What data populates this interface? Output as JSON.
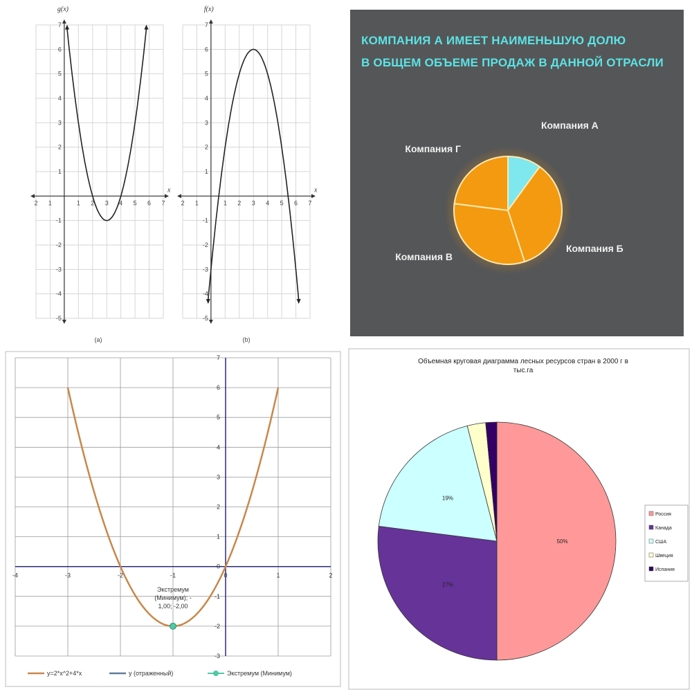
{
  "chart_data": [
    {
      "type": "line",
      "panel_label": "(a)",
      "ylabel": "g(x)",
      "xlabel": "x",
      "xlim": [
        -2,
        7
      ],
      "ylim": [
        -5,
        7
      ],
      "x_ticks": [
        -2,
        -1,
        1,
        2,
        3,
        4,
        5,
        6,
        7
      ],
      "y_ticks": [
        7,
        6,
        5,
        4,
        3,
        2,
        1,
        -1,
        -2,
        -3,
        -4,
        -5
      ],
      "x_tick_labels": [
        "2",
        "1",
        "1",
        "2",
        "3",
        "4",
        "5",
        "6",
        "7"
      ],
      "y_tick_labels": [
        "7",
        "6",
        "5",
        "4",
        "3",
        "2",
        "1",
        "-1",
        "-2",
        "-3",
        "-4",
        "-5"
      ],
      "function": "g(x) = (x-3)^2 - 1",
      "x": [
        0.2,
        0.5,
        1,
        1.5,
        2,
        2.5,
        3,
        3.5,
        4,
        4.5,
        5,
        5.5,
        5.8
      ],
      "y": [
        6.84,
        5.25,
        3,
        1.25,
        0,
        -0.75,
        -1,
        -0.75,
        0,
        1.25,
        3,
        5.25,
        6.84
      ],
      "grid": true
    },
    {
      "type": "line",
      "panel_label": "(b)",
      "ylabel": "f(x)",
      "xlabel": "x",
      "xlim": [
        -2,
        7
      ],
      "ylim": [
        -5,
        7
      ],
      "x_ticks": [
        -2,
        -1,
        1,
        2,
        3,
        4,
        5,
        6,
        7
      ],
      "y_ticks": [
        7,
        6,
        5,
        4,
        3,
        2,
        1,
        -1,
        -2,
        -3,
        -4,
        -5
      ],
      "x_tick_labels": [
        "2",
        "1",
        "1",
        "2",
        "3",
        "4",
        "5",
        "6",
        "7"
      ],
      "y_tick_labels": [
        "7",
        "6",
        "5",
        "4",
        "3",
        "2",
        "1",
        "-1",
        "-2",
        "-3",
        "-4",
        "-5"
      ],
      "function": "f(x) = -(x-3)^2 + 6",
      "x": [
        -0.2,
        0,
        0.5,
        1,
        1.5,
        2,
        2.5,
        3,
        3.5,
        4,
        4.5,
        5,
        5.5,
        6,
        6.2
      ],
      "y": [
        -4.24,
        -3,
        0.75,
        2,
        3.75,
        5,
        5.75,
        6,
        5.75,
        5,
        3.75,
        2,
        -0.25,
        -3,
        -4.24
      ],
      "grid": true
    },
    {
      "type": "pie",
      "title": "КОМПАНИЯ А ИМЕЕТ НАИМЕНЬШУЮ ДОЛЮ В ОБЩЕМ ОБЪЕМЕ ПРОДАЖ В ДАННОЙ ОТРАСЛИ",
      "title_lines": [
        "КОМПАНИЯ А ИМЕЕТ НАИМЕНЬШУЮ ДОЛЮ",
        "В ОБЩЕМ ОБЪЕМЕ ПРОДАЖ В ДАННОЙ ОТРАСЛИ"
      ],
      "slices": [
        {
          "label": "Компания А",
          "value": 10,
          "color": "#7fe7ee"
        },
        {
          "label": "Компания Б",
          "value": 35,
          "color": "#f39a10"
        },
        {
          "label": "Компания В",
          "value": 32,
          "color": "#f39a10"
        },
        {
          "label": "Компания Г",
          "value": 23,
          "color": "#f39a10"
        }
      ],
      "title_color": "#5be3e6",
      "background": "#555657"
    },
    {
      "type": "line",
      "xlim": [
        -4,
        2
      ],
      "ylim": [
        -3,
        7
      ],
      "x_ticks": [
        -4,
        -3,
        -2,
        -1,
        0,
        1,
        2
      ],
      "y_ticks": [
        -3,
        -2,
        -1,
        0,
        1,
        2,
        3,
        4,
        5,
        6,
        7
      ],
      "x_tick_labels": [
        "-4",
        "-3",
        "-2",
        "-1",
        "0",
        "1",
        "2"
      ],
      "y_tick_labels": [
        "-3",
        "-2",
        "-1",
        "0",
        "1",
        "2",
        "3",
        "4",
        "5",
        "6",
        "7"
      ],
      "function": "y = 2x^2 + 4x",
      "series": [
        {
          "name": "y=2*x^2+4*x",
          "color": "#c8874a",
          "x": [
            -3,
            -2.5,
            -2,
            -1.5,
            -1,
            -0.5,
            0,
            0.5,
            1
          ],
          "y": [
            6,
            2.5,
            0,
            -1.5,
            -2,
            -1.5,
            0,
            2.5,
            6
          ]
        },
        {
          "name": "y (отраженный)",
          "color": "#5f7d9c",
          "x": [],
          "y": []
        },
        {
          "name": "Экстремум (Минимум)",
          "color": "#4fc9a5",
          "x": [
            -1
          ],
          "y": [
            -2
          ]
        }
      ],
      "annotation": {
        "lines": [
          "Экстремум",
          "(Минимум); -",
          "1,00; -2,00"
        ],
        "x": -1,
        "y": -2
      },
      "grid": true
    },
    {
      "type": "pie",
      "title": "Объемная круговая диаграмма лесных ресурсов стран в 2000 г в тыс.га",
      "title_lines": [
        "Объемная круговая диаграмма лесных ресурсов стран в 2000 г в",
        "тыс.га"
      ],
      "slices": [
        {
          "label": "Россия",
          "value": 50,
          "display": "50%",
          "color": "#ff9999"
        },
        {
          "label": "Канада",
          "value": 27,
          "display": "27%",
          "color": "#663399"
        },
        {
          "label": "США",
          "value": 19,
          "display": "19%",
          "color": "#ccffff"
        },
        {
          "label": "Швеция",
          "value": 2.5,
          "display": "",
          "color": "#ffffcc"
        },
        {
          "label": "Испания",
          "value": 1.5,
          "display": "",
          "color": "#330066"
        }
      ],
      "legend": "right"
    }
  ]
}
